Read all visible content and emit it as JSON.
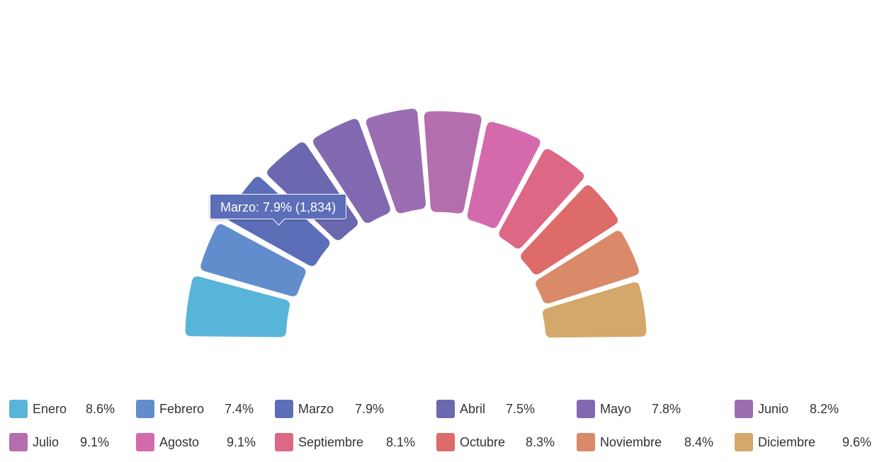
{
  "chart_data": {
    "type": "pie",
    "variant": "semicircle-donut",
    "title": "",
    "categories": [
      "Enero",
      "Febrero",
      "Marzo",
      "Abril",
      "Mayo",
      "Junio",
      "Julio",
      "Agosto",
      "Septiembre",
      "Octubre",
      "Noviembre",
      "Diciembre"
    ],
    "values": [
      8.6,
      7.4,
      7.9,
      7.5,
      7.8,
      8.2,
      9.1,
      9.1,
      8.1,
      8.3,
      8.4,
      9.6
    ],
    "value_labels": [
      "8.6%",
      "7.4%",
      "7.9%",
      "7.5%",
      "7.8%",
      "8.2%",
      "9.1%",
      "9.1%",
      "8.1%",
      "8.3%",
      "8.4%",
      "9.6%"
    ],
    "colors": [
      "#58b4d9",
      "#628dcc",
      "#5c6eb8",
      "#6b68b0",
      "#8169b2",
      "#9b6db1",
      "#b46dad",
      "#d46aab",
      "#dc6886",
      "#dc6b69",
      "#d98a69",
      "#d4a76a"
    ],
    "highlighted_index": 2,
    "legend_position": "bottom",
    "tooltip": {
      "text": "Marzo: 7.9% (1,834)",
      "color": "#5c6eb8"
    }
  }
}
